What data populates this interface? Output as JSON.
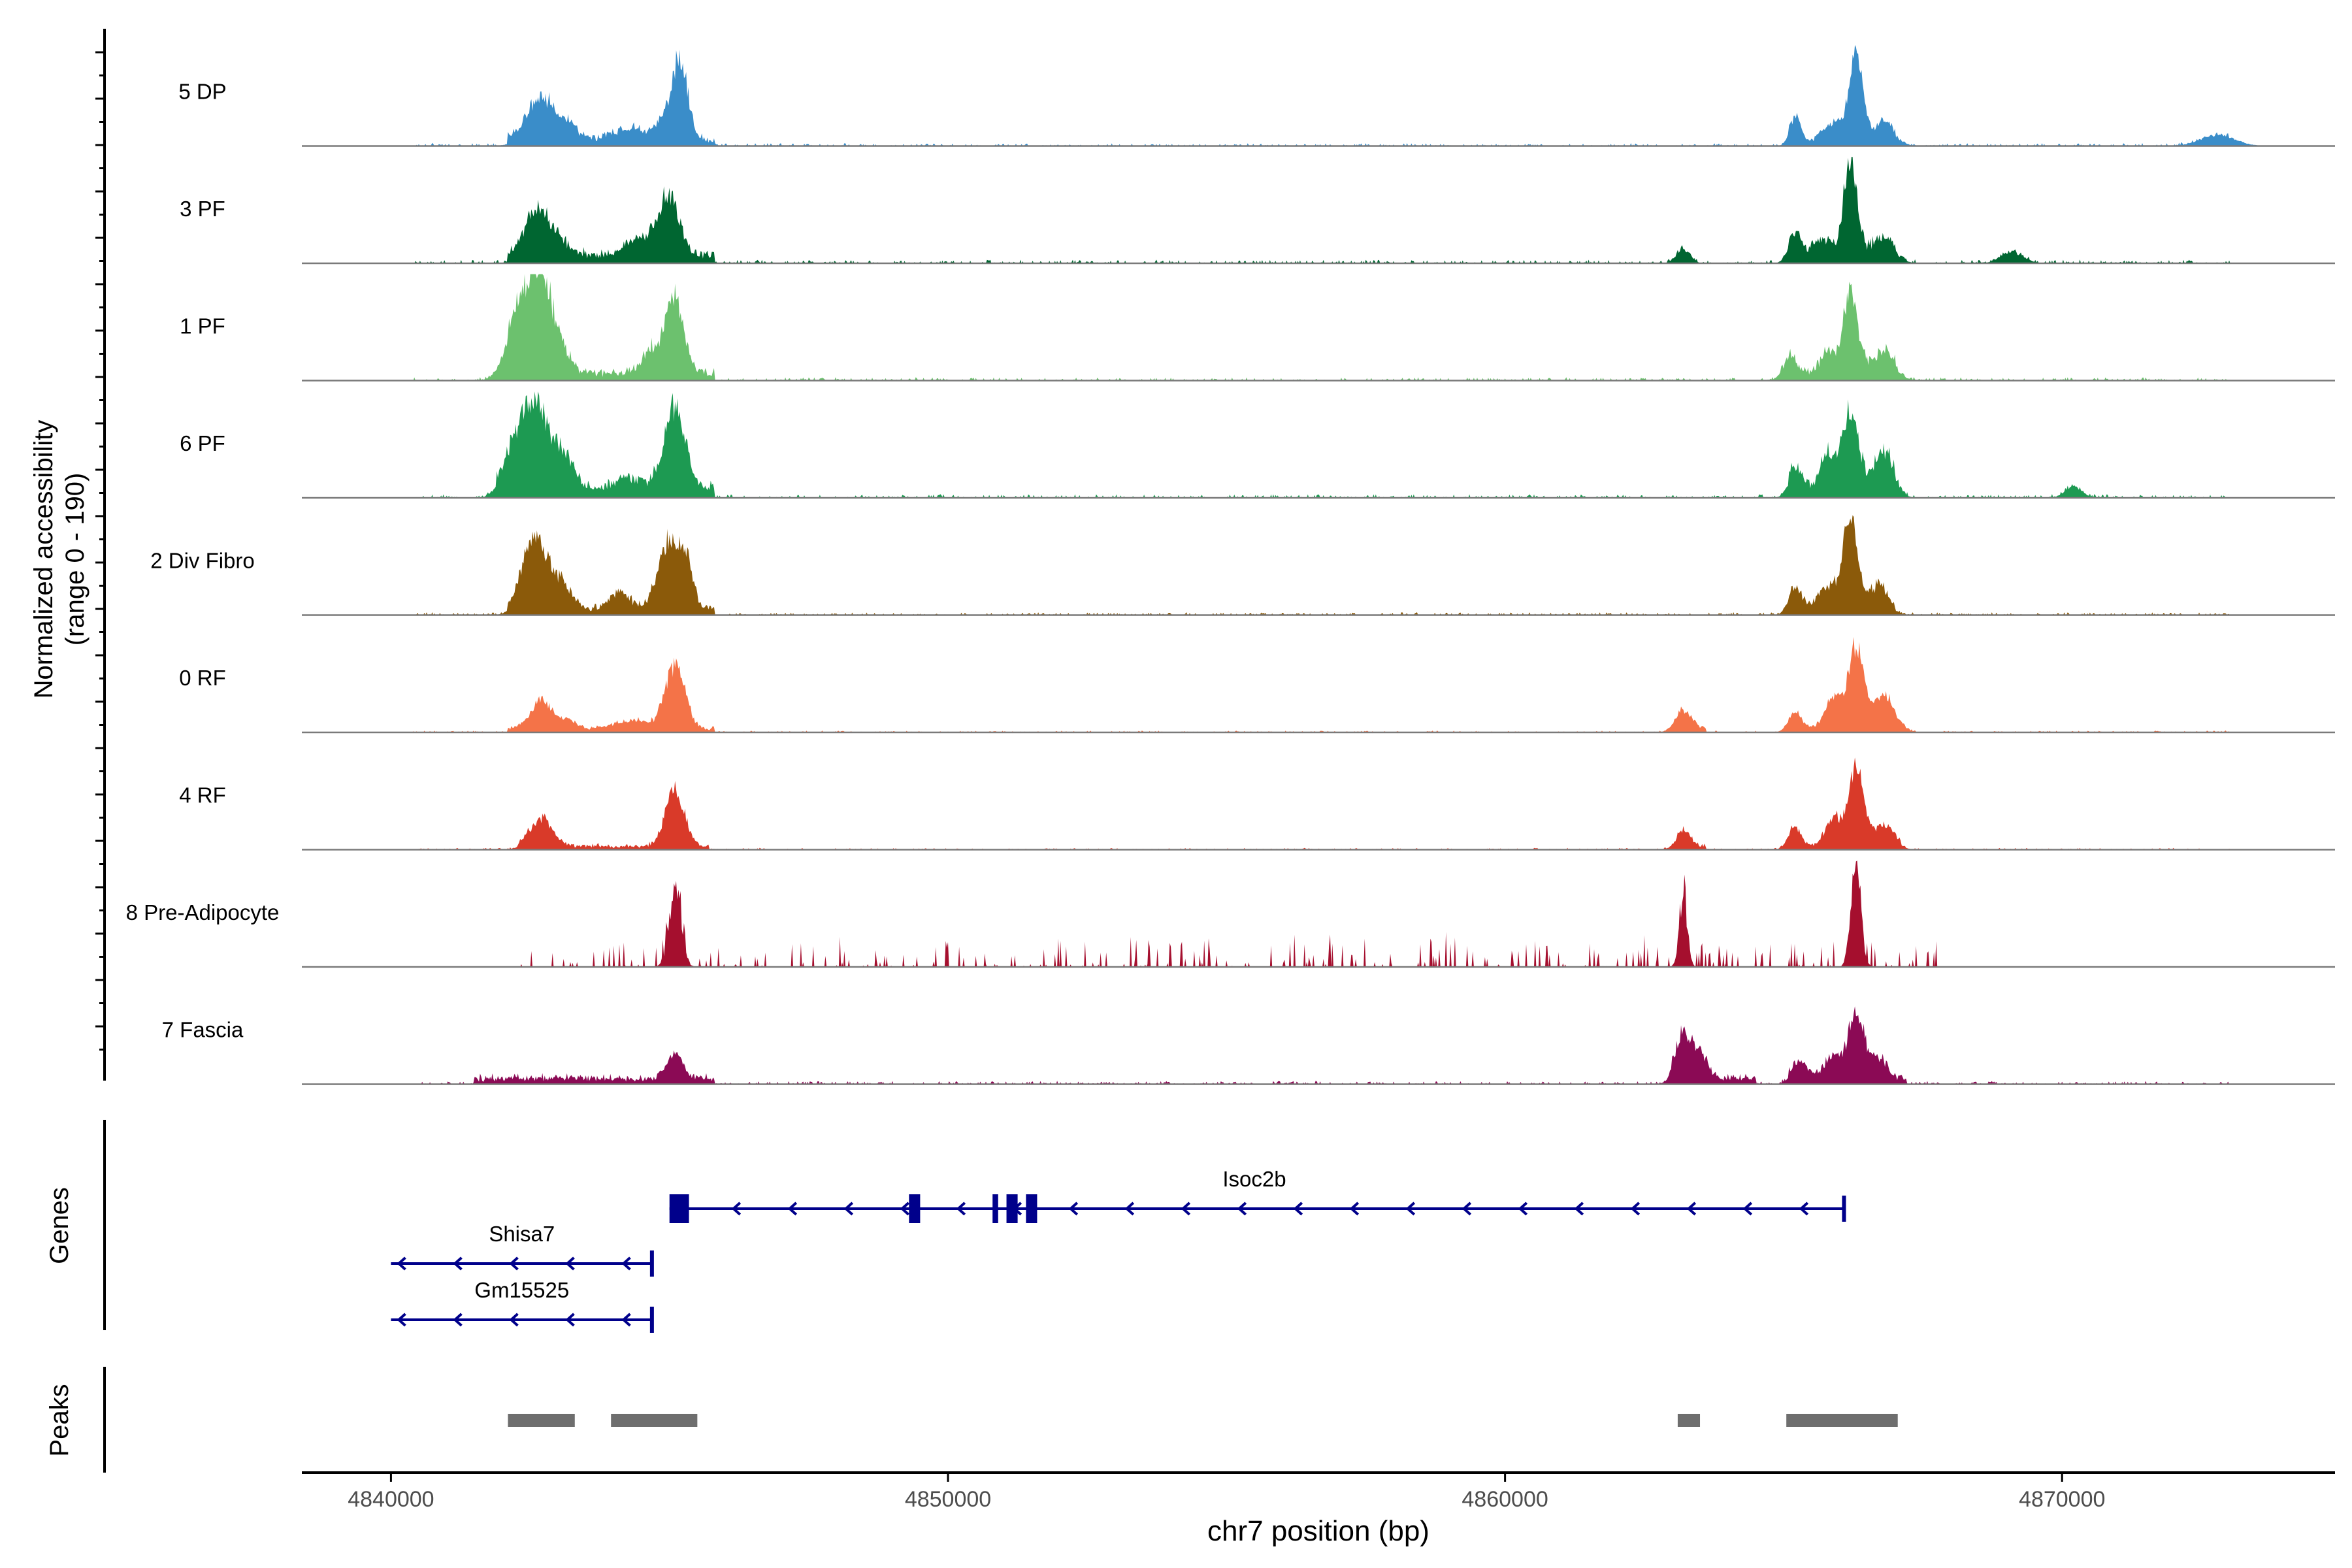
{
  "chart_data": {
    "type": "area",
    "title": "",
    "ylabel_line1": "Normalized accessibility",
    "ylabel_line2": "(range 0 - 190)",
    "ylim": [
      0,
      190
    ],
    "genes_label": "Genes",
    "peaks_label": "Peaks",
    "xlabel": "chr7 position (bp)",
    "xlim": [
      4838400,
      4874900
    ],
    "xticks": [
      4840000,
      4850000,
      4860000,
      4870000
    ],
    "xtick_labels": [
      "4840000",
      "4850000",
      "4860000",
      "4870000"
    ],
    "tracks": [
      {
        "name": "5 DP",
        "color": "#3a8dc9",
        "peaks": [
          [
            4842700,
            75,
            250
          ],
          [
            4843200,
            25,
            150
          ],
          [
            4844300,
            20,
            300
          ],
          [
            4845000,
            45,
            200
          ],
          [
            4845200,
            120,
            130
          ],
          [
            4865200,
            40,
            100
          ],
          [
            4865900,
            30,
            150
          ],
          [
            4866300,
            150,
            120
          ],
          [
            4866800,
            30,
            200
          ],
          [
            4872800,
            20,
            300
          ]
        ],
        "noise": 8,
        "noise_range": [
          4840400,
          4873000
        ],
        "segments": [
          [
            4842100,
            4845800
          ],
          [
            4865100,
            4867000
          ]
        ],
        "base": 12,
        "seed": 11
      },
      {
        "name": "3 PF",
        "color": "#006631",
        "peaks": [
          [
            4842600,
            80,
            200
          ],
          [
            4843000,
            30,
            200
          ],
          [
            4844500,
            30,
            300
          ],
          [
            4845000,
            100,
            180
          ],
          [
            4863200,
            25,
            120
          ],
          [
            4865200,
            40,
            120
          ],
          [
            4865700,
            30,
            150
          ],
          [
            4866200,
            175,
            120
          ],
          [
            4866800,
            35,
            200
          ],
          [
            4869100,
            20,
            200
          ]
        ],
        "noise": 10,
        "noise_range": [
          4840400,
          4873000
        ],
        "segments": [
          [
            4842100,
            4845800
          ],
          [
            4865100,
            4867000
          ]
        ],
        "base": 14,
        "seed": 23
      },
      {
        "name": "1 PF",
        "color": "#6cc16e",
        "peaks": [
          [
            4842300,
            110,
            220
          ],
          [
            4842700,
            170,
            200
          ],
          [
            4843100,
            30,
            150
          ],
          [
            4844700,
            40,
            180
          ],
          [
            4845100,
            130,
            160
          ],
          [
            4865100,
            35,
            120
          ],
          [
            4865800,
            35,
            150
          ],
          [
            4866200,
            140,
            130
          ],
          [
            4866800,
            40,
            200
          ]
        ],
        "noise": 9,
        "noise_range": [
          4840400,
          4873000
        ],
        "segments": [
          [
            4842100,
            4845800
          ],
          [
            4865100,
            4867000
          ]
        ],
        "base": 14,
        "seed": 37
      },
      {
        "name": "6 PF",
        "color": "#1d9a52",
        "peaks": [
          [
            4842200,
            70,
            200
          ],
          [
            4842600,
            150,
            220
          ],
          [
            4843100,
            60,
            180
          ],
          [
            4844300,
            20,
            300
          ],
          [
            4845100,
            150,
            180
          ],
          [
            4865200,
            40,
            120
          ],
          [
            4865800,
            60,
            150
          ],
          [
            4866200,
            140,
            140
          ],
          [
            4866800,
            70,
            180
          ],
          [
            4870200,
            20,
            150
          ]
        ],
        "noise": 10,
        "noise_range": [
          4840400,
          4873000
        ],
        "segments": [
          [
            4841900,
            4845800
          ],
          [
            4865100,
            4867000
          ]
        ],
        "base": 16,
        "seed": 41
      },
      {
        "name": "2 Div Fibro",
        "color": "#8b5a0a",
        "peaks": [
          [
            4842600,
            130,
            220
          ],
          [
            4843100,
            40,
            160
          ],
          [
            4844100,
            30,
            180
          ],
          [
            4845000,
            120,
            200
          ],
          [
            4845300,
            60,
            120
          ],
          [
            4865200,
            40,
            120
          ],
          [
            4865800,
            40,
            160
          ],
          [
            4866200,
            175,
            130
          ],
          [
            4866700,
            40,
            180
          ]
        ],
        "noise": 8,
        "noise_range": [
          4840400,
          4873000
        ],
        "segments": [
          [
            4842100,
            4845800
          ],
          [
            4865100,
            4867000
          ]
        ],
        "base": 12,
        "seed": 53
      },
      {
        "name": "0 RF",
        "color": "#f47348",
        "peaks": [
          [
            4842700,
            50,
            200
          ],
          [
            4843200,
            15,
            150
          ],
          [
            4844300,
            15,
            300
          ],
          [
            4845100,
            110,
            180
          ],
          [
            4863200,
            35,
            150
          ],
          [
            4865200,
            30,
            120
          ],
          [
            4865900,
            60,
            150
          ],
          [
            4866300,
            150,
            130
          ],
          [
            4866800,
            60,
            200
          ]
        ],
        "noise": 5,
        "noise_range": [
          4840400,
          4873000
        ],
        "segments": [
          [
            4842100,
            4845800
          ],
          [
            4863100,
            4863600
          ],
          [
            4865100,
            4867000
          ]
        ],
        "base": 6,
        "seed": 67
      },
      {
        "name": "4 RF",
        "color": "#d93a29",
        "peaks": [
          [
            4842700,
            50,
            200
          ],
          [
            4845100,
            100,
            170
          ],
          [
            4863200,
            30,
            130
          ],
          [
            4865200,
            35,
            120
          ],
          [
            4865900,
            50,
            150
          ],
          [
            4866300,
            145,
            130
          ],
          [
            4866800,
            40,
            180
          ]
        ],
        "noise": 5,
        "noise_range": [
          4840400,
          4873000
        ],
        "segments": [
          [
            4842300,
            4845700
          ],
          [
            4863100,
            4863600
          ],
          [
            4865100,
            4867100
          ]
        ],
        "base": 6,
        "seed": 79
      },
      {
        "name": "8 Pre-Adipocyte",
        "color": "#a50f2e",
        "peaks": [
          [
            4845100,
            130,
            110
          ],
          [
            4863200,
            125,
            70
          ],
          [
            4866300,
            175,
            90
          ]
        ],
        "noise": 40,
        "noise_range": [
          4842300,
          4868000
        ],
        "segments": [],
        "base": 0,
        "seed": 97,
        "spiky": true
      },
      {
        "name": "7 Fascia",
        "color": "#8b0a55",
        "peaks": [
          [
            4845100,
            45,
            140
          ],
          [
            4863200,
            80,
            140
          ],
          [
            4863500,
            40,
            150
          ],
          [
            4865300,
            30,
            150
          ],
          [
            4865900,
            40,
            150
          ],
          [
            4866300,
            125,
            130
          ],
          [
            4866700,
            40,
            150
          ]
        ],
        "noise": 9,
        "noise_range": [
          4840400,
          4873000
        ],
        "segments": [
          [
            4841500,
            4845800
          ],
          [
            4863000,
            4864500
          ],
          [
            4865100,
            4867200
          ]
        ],
        "base": 10,
        "seed": 101
      }
    ],
    "genes": [
      {
        "name": "Isoc2b",
        "start": 4845000,
        "end": 4866100,
        "strand": "-",
        "row": 0,
        "exons": [
          [
            4845000,
            4845350
          ],
          [
            4849300,
            4849500
          ],
          [
            4850800,
            4850900
          ],
          [
            4851050,
            4851250
          ],
          [
            4851400,
            4851600
          ],
          [
            4866050,
            4866100
          ]
        ],
        "label_x": 4855500
      },
      {
        "name": "Shisa7",
        "start": 4840000,
        "end": 4844700,
        "strand": "-",
        "row": 1,
        "exons": [
          [
            4844650,
            4844700
          ]
        ],
        "label_x": 4842350
      },
      {
        "name": "Gm15525",
        "start": 4840000,
        "end": 4844700,
        "strand": "-",
        "row": 2,
        "exons": [
          [
            4844650,
            4844700
          ]
        ],
        "label_x": 4842350
      }
    ],
    "gene_color": "#00008b",
    "peak_regions": [
      [
        4842100,
        4843300
      ],
      [
        4843950,
        4845500
      ],
      [
        4863100,
        4863500
      ],
      [
        4865050,
        4867050
      ]
    ],
    "peak_color": "#6e6e6e"
  }
}
